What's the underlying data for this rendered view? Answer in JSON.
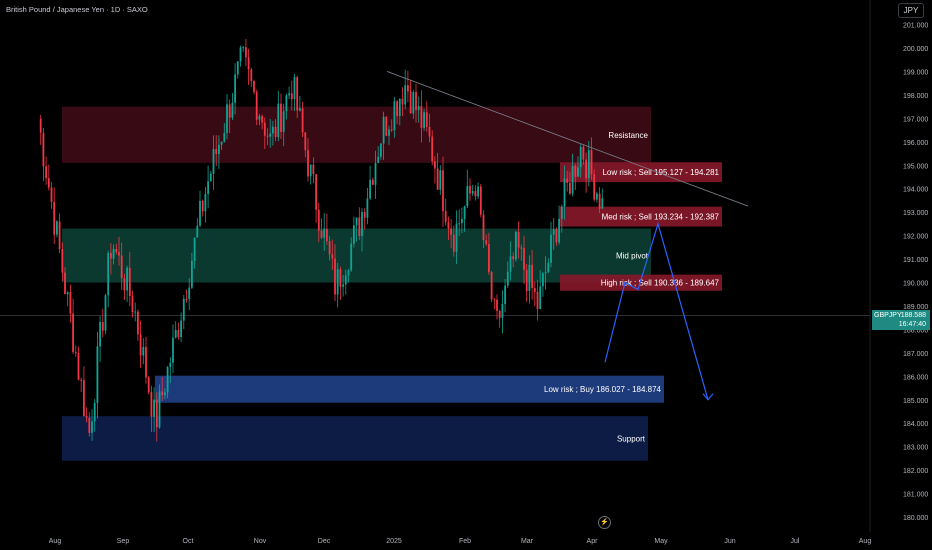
{
  "header": {
    "title": "British Pound / Japanese Yen · 1D · SAXO",
    "currency": "JPY"
  },
  "price_tag": {
    "symbol": "GBPJPY",
    "price": "188.588",
    "countdown": "16:47:40"
  },
  "icons": {
    "event": "lightning-icon"
  },
  "colors": {
    "up": "#0fa596",
    "down": "#f23645",
    "resistance": "#3b0b14",
    "pivot": "#0c3c32",
    "buy_zone": "#1d3a7a",
    "support": "#0d1c45",
    "sell_label": "#86182a",
    "projection": "#2962ff"
  },
  "chart_data": {
    "type": "candlestick",
    "symbol": "GBPJPY",
    "timeframe": "1D",
    "x_ticks": [
      "Aug",
      "Sep",
      "Oct",
      "Nov",
      "Dec",
      "2025",
      "Feb",
      "Mar",
      "Apr",
      "May",
      "Jun",
      "Jul",
      "Aug"
    ],
    "y_ticks": [
      "180.000",
      "181.000",
      "182.000",
      "183.000",
      "184.000",
      "185.000",
      "186.000",
      "187.000",
      "188.000",
      "189.000",
      "190.000",
      "191.000",
      "192.000",
      "193.000",
      "194.000",
      "195.000",
      "196.000",
      "197.000",
      "198.000",
      "199.000",
      "200.000",
      "201.000"
    ],
    "ylim": [
      179.6,
      201.4
    ],
    "zones": [
      {
        "name": "Resistance",
        "low": 195.1,
        "high": 197.5,
        "label": "Resistance"
      },
      {
        "name": "Mid pivot",
        "low": 190.0,
        "high": 192.3,
        "label": "Mid pivot"
      },
      {
        "name": "Buy zone",
        "low": 184.874,
        "high": 186.027,
        "label": "Low risk ; Buy 186.027 - 184.874"
      },
      {
        "name": "Support",
        "low": 182.4,
        "high": 184.3,
        "label": "Support"
      }
    ],
    "sell_levels": [
      {
        "label": "Low risk ; Sell 195.127 - 194.281",
        "high": 195.127,
        "low": 194.281
      },
      {
        "label": "Med risk ; Sell 193.234 - 192.387",
        "high": 193.234,
        "low": 192.387
      },
      {
        "label": "High risk ; Sell 190.336 - 189.647",
        "high": 190.336,
        "low": 189.647
      }
    ],
    "last_price": 188.588,
    "key_points": [
      {
        "date": "Aug",
        "close": 197.0
      },
      {
        "date": "Aug",
        "close": 183.5
      },
      {
        "date": "Aug",
        "close": 191.8
      },
      {
        "date": "Sep",
        "close": 189.0
      },
      {
        "date": "Sep",
        "close": 184.0
      },
      {
        "date": "Sep",
        "close": 188.0
      },
      {
        "date": "Oct",
        "close": 194.0
      },
      {
        "date": "Oct",
        "close": 199.5
      },
      {
        "date": "Nov",
        "close": 196.0
      },
      {
        "date": "Nov",
        "close": 198.5
      },
      {
        "date": "Nov",
        "close": 194.0
      },
      {
        "date": "Dec",
        "close": 189.8
      },
      {
        "date": "Dec",
        "close": 192.5
      },
      {
        "date": "Dec",
        "close": 196.5
      },
      {
        "date": "2025",
        "close": 198.5
      },
      {
        "date": "2025",
        "close": 196.0
      },
      {
        "date": "2025",
        "close": 192.0
      },
      {
        "date": "Feb",
        "close": 194.3
      },
      {
        "date": "Feb",
        "close": 188.0
      },
      {
        "date": "Feb",
        "close": 191.5
      },
      {
        "date": "Mar",
        "close": 189.0
      },
      {
        "date": "Mar",
        "close": 193.0
      },
      {
        "date": "Mar",
        "close": 195.8
      },
      {
        "date": "Apr",
        "close": 193.2
      },
      {
        "date": "Apr",
        "close": 187.1
      },
      {
        "date": "Apr",
        "close": 188.588
      }
    ],
    "trendline": {
      "from": {
        "date": "2025",
        "price": 199.0
      },
      "to": {
        "date": "May",
        "price": 193.6
      }
    },
    "projection_path": [
      {
        "date": "Apr",
        "price": 186.6
      },
      {
        "date": "Apr",
        "price": 190.0
      },
      {
        "date": "Apr",
        "price": 189.7
      },
      {
        "date": "May",
        "price": 192.5
      },
      {
        "date": "May",
        "price": 185.0
      }
    ]
  }
}
